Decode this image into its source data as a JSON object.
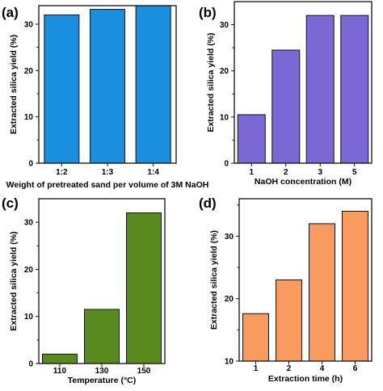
{
  "chart_data": [
    {
      "type": "bar",
      "panel": "(a)",
      "categories": [
        "1:2",
        "1:3",
        "1:4"
      ],
      "values": [
        32,
        33.2,
        34
      ],
      "xlabel": "Weight of pretreated sand per volume of 3M NaOH",
      "ylabel": "Extracted silica yield (%)",
      "ylim": [
        0,
        34
      ],
      "yticks": [
        0,
        10,
        20,
        30
      ],
      "color": "#1a8fe0"
    },
    {
      "type": "bar",
      "panel": "(b)",
      "categories": [
        "1",
        "2",
        "3",
        "5"
      ],
      "values": [
        10.5,
        24.5,
        32,
        32
      ],
      "xlabel": "NaOH concentration (M)",
      "ylabel": "Extracted silica yield (%)",
      "ylim": [
        0,
        35
      ],
      "yticks": [
        0,
        10,
        20,
        30
      ],
      "color": "#7b68d4"
    },
    {
      "type": "bar",
      "panel": "(c)",
      "categories": [
        "110",
        "130",
        "150"
      ],
      "values": [
        2,
        11.5,
        32
      ],
      "xlabel": "Temperature (°C)",
      "ylabel": "Extracted silica yield (%)",
      "ylim": [
        0,
        35
      ],
      "yticks": [
        0,
        10,
        20,
        30
      ],
      "color": "#5a8a1e"
    },
    {
      "type": "bar",
      "panel": "(d)",
      "categories": [
        "1",
        "2",
        "4",
        "6"
      ],
      "values": [
        17.6,
        23,
        32,
        34
      ],
      "xlabel": "Extraction time (h)",
      "ylabel": "Extracted silica yield (%)",
      "ylim": [
        10,
        36
      ],
      "yticks": [
        10,
        20,
        30
      ],
      "color": "#f99a5f"
    }
  ]
}
